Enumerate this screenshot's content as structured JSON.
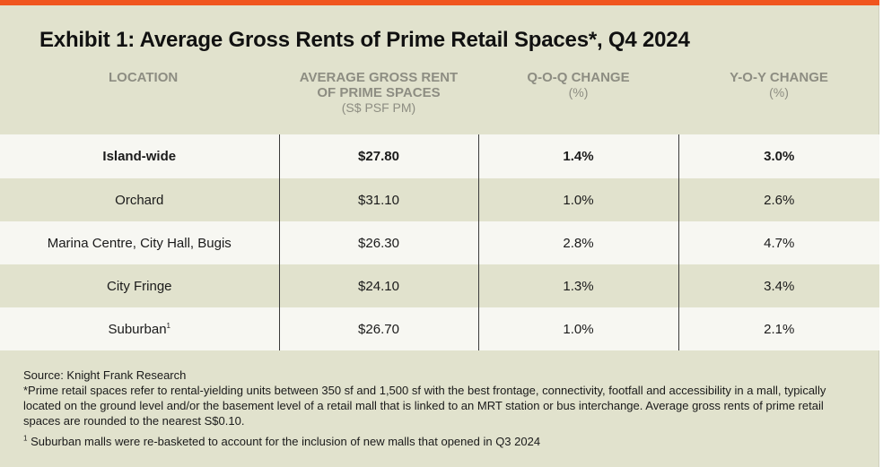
{
  "title": "Exhibit 1: Average Gross Rents of Prime Retail Spaces*, Q4 2024",
  "colors": {
    "accent_bar": "#f0561f",
    "panel_bg": "#e1e2cd",
    "row_light": "#f7f7f2",
    "header_text": "#8d8d82"
  },
  "table": {
    "headers": [
      {
        "label": "LOCATION",
        "label2": "",
        "sub": ""
      },
      {
        "label": "AVERAGE GROSS RENT",
        "label2": "OF PRIME SPACES",
        "sub": "(S$ PSF PM)"
      },
      {
        "label": "Q-O-Q CHANGE",
        "label2": "",
        "sub": "(%)"
      },
      {
        "label": "Y-O-Y CHANGE",
        "label2": "",
        "sub": "(%)"
      }
    ],
    "rows": [
      {
        "location": "Island-wide",
        "sup": "",
        "rent": "$27.80",
        "qoq": "1.4%",
        "yoy": "3.0%"
      },
      {
        "location": "Orchard",
        "sup": "",
        "rent": "$31.10",
        "qoq": "1.0%",
        "yoy": "2.6%"
      },
      {
        "location": "Marina Centre, City Hall, Bugis",
        "sup": "",
        "rent": "$26.30",
        "qoq": "2.8%",
        "yoy": "4.7%"
      },
      {
        "location": "City Fringe",
        "sup": "",
        "rent": "$24.10",
        "qoq": "1.3%",
        "yoy": "3.4%"
      },
      {
        "location": "Suburban",
        "sup": "1",
        "rent": "$26.70",
        "qoq": "1.0%",
        "yoy": "2.1%"
      }
    ]
  },
  "footer": {
    "source": "Source: Knight Frank Research",
    "note": "*Prime retail spaces refer to rental-yielding units between 350 sf and 1,500 sf with the best frontage, connectivity, footfall and accessibility in a mall, typically located on the ground level and/or the basement level of a retail mall that is linked to an MRT station or bus interchange. Average gross rents of prime retail spaces are rounded to the nearest S$0.10.",
    "footnote_marker": "1",
    "footnote": " Suburban malls were re-basketed to account for the inclusion of new malls that opened in Q3 2024"
  }
}
